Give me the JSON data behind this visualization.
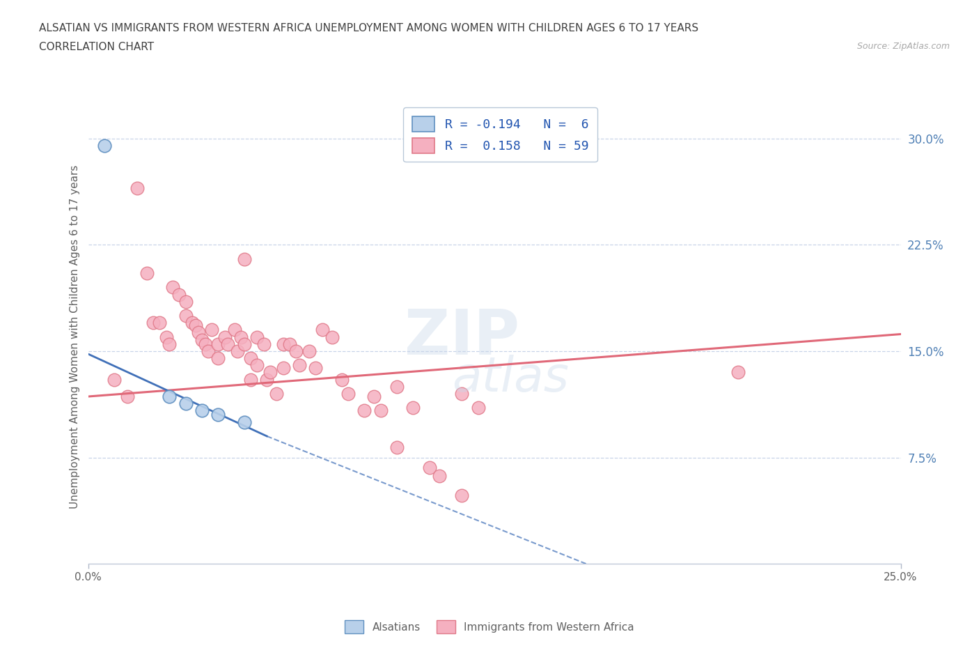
{
  "title_line1": "ALSATIAN VS IMMIGRANTS FROM WESTERN AFRICA UNEMPLOYMENT AMONG WOMEN WITH CHILDREN AGES 6 TO 17 YEARS",
  "title_line2": "CORRELATION CHART",
  "source_text": "Source: ZipAtlas.com",
  "ylabel": "Unemployment Among Women with Children Ages 6 to 17 years",
  "xlim": [
    0.0,
    0.25
  ],
  "ylim": [
    0.0,
    0.32
  ],
  "xtick_positions": [
    0.0,
    0.25
  ],
  "xtick_labels": [
    "0.0%",
    "25.0%"
  ],
  "ytick_positions": [
    0.075,
    0.15,
    0.225,
    0.3
  ],
  "ytick_labels": [
    "7.5%",
    "15.0%",
    "22.5%",
    "30.0%"
  ],
  "alsatian_color": "#b8d0ea",
  "alsatian_edge": "#6090c0",
  "immigrant_color": "#f5b0c0",
  "immigrant_edge": "#e07888",
  "alsatian_trend_color": "#4070b8",
  "immigrant_trend_color": "#e06878",
  "R_alsatian": -0.194,
  "N_alsatian": 6,
  "R_immigrant": 0.158,
  "N_immigrant": 59,
  "alsatian_points": [
    [
      0.005,
      0.295
    ],
    [
      0.025,
      0.118
    ],
    [
      0.03,
      0.113
    ],
    [
      0.035,
      0.108
    ],
    [
      0.04,
      0.105
    ],
    [
      0.048,
      0.1
    ]
  ],
  "immigrant_points": [
    [
      0.008,
      0.13
    ],
    [
      0.012,
      0.118
    ],
    [
      0.015,
      0.265
    ],
    [
      0.018,
      0.205
    ],
    [
      0.02,
      0.17
    ],
    [
      0.022,
      0.17
    ],
    [
      0.024,
      0.16
    ],
    [
      0.025,
      0.155
    ],
    [
      0.026,
      0.195
    ],
    [
      0.028,
      0.19
    ],
    [
      0.03,
      0.185
    ],
    [
      0.03,
      0.175
    ],
    [
      0.032,
      0.17
    ],
    [
      0.033,
      0.168
    ],
    [
      0.034,
      0.163
    ],
    [
      0.035,
      0.158
    ],
    [
      0.036,
      0.155
    ],
    [
      0.037,
      0.15
    ],
    [
      0.038,
      0.165
    ],
    [
      0.04,
      0.155
    ],
    [
      0.04,
      0.145
    ],
    [
      0.042,
      0.16
    ],
    [
      0.043,
      0.155
    ],
    [
      0.045,
      0.165
    ],
    [
      0.046,
      0.15
    ],
    [
      0.047,
      0.16
    ],
    [
      0.048,
      0.215
    ],
    [
      0.048,
      0.155
    ],
    [
      0.05,
      0.145
    ],
    [
      0.05,
      0.13
    ],
    [
      0.052,
      0.16
    ],
    [
      0.052,
      0.14
    ],
    [
      0.054,
      0.155
    ],
    [
      0.055,
      0.13
    ],
    [
      0.056,
      0.135
    ],
    [
      0.058,
      0.12
    ],
    [
      0.06,
      0.155
    ],
    [
      0.06,
      0.138
    ],
    [
      0.062,
      0.155
    ],
    [
      0.064,
      0.15
    ],
    [
      0.065,
      0.14
    ],
    [
      0.068,
      0.15
    ],
    [
      0.07,
      0.138
    ],
    [
      0.072,
      0.165
    ],
    [
      0.075,
      0.16
    ],
    [
      0.078,
      0.13
    ],
    [
      0.08,
      0.12
    ],
    [
      0.085,
      0.108
    ],
    [
      0.088,
      0.118
    ],
    [
      0.09,
      0.108
    ],
    [
      0.095,
      0.125
    ],
    [
      0.095,
      0.082
    ],
    [
      0.1,
      0.11
    ],
    [
      0.105,
      0.068
    ],
    [
      0.108,
      0.062
    ],
    [
      0.115,
      0.12
    ],
    [
      0.115,
      0.048
    ],
    [
      0.12,
      0.11
    ],
    [
      0.2,
      0.135
    ]
  ],
  "grid_color": "#c8d4e8",
  "bg_color": "#ffffff",
  "title_color": "#404040",
  "axis_label_color": "#5080b5",
  "legend_text_color": "#2255b0",
  "bottom_legend_color": "#606060",
  "legend_label1": "Alsatians",
  "legend_label2": "Immigrants from Western Africa",
  "watermark_color": "#c8d8ea"
}
